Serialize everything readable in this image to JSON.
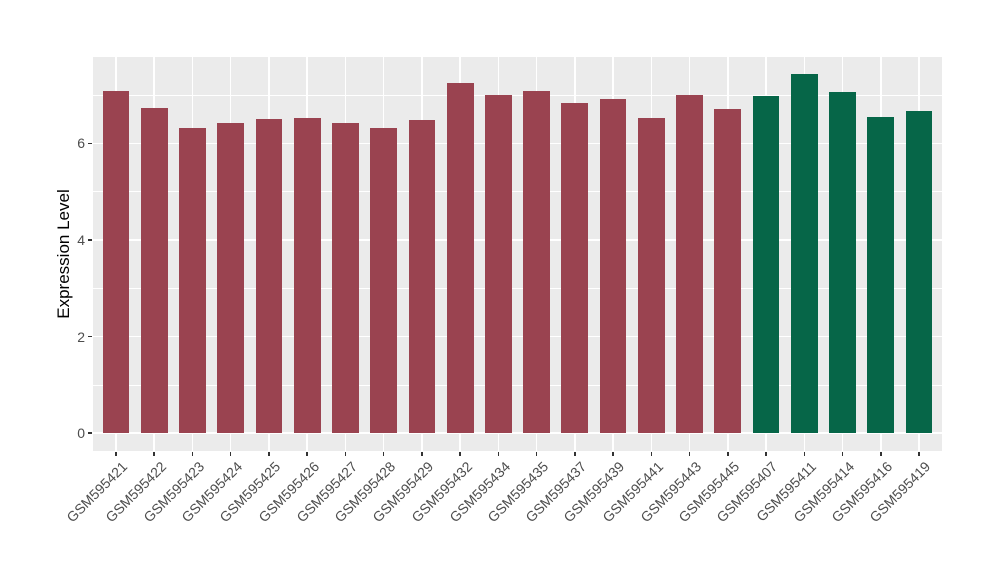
{
  "figure": {
    "background": "#FFFFFF"
  },
  "chart_data": {
    "type": "bar",
    "title": "",
    "xlabel": "",
    "ylabel": "Expression Level",
    "legend_position": "none",
    "grid": true,
    "panel_bg": "#EBEBEB",
    "gridline_color": "#FFFFFF",
    "axis_text_color": "#4D4D4D",
    "axis_title_color": "#000000",
    "tick_mark_color": "#333333",
    "bar_width_frac": 0.7,
    "yticks": [
      0,
      2,
      4,
      6
    ],
    "minor_yticks": [
      1,
      3,
      5,
      7
    ],
    "ylim": [
      0,
      7.43
    ],
    "y_display_range": [
      -0.37,
      7.79
    ],
    "categories": [
      "GSM595421",
      "GSM595422",
      "GSM595423",
      "GSM595424",
      "GSM595425",
      "GSM595426",
      "GSM595427",
      "GSM595428",
      "GSM595429",
      "GSM595432",
      "GSM595434",
      "GSM595435",
      "GSM595437",
      "GSM595439",
      "GSM595441",
      "GSM595443",
      "GSM595445",
      "GSM595407",
      "GSM595411",
      "GSM595414",
      "GSM595416",
      "GSM595419"
    ],
    "values": [
      7.08,
      6.74,
      6.32,
      6.42,
      6.5,
      6.53,
      6.43,
      6.31,
      6.48,
      7.26,
      7.0,
      7.09,
      6.84,
      6.92,
      6.52,
      7.0,
      6.72,
      6.98,
      7.43,
      7.06,
      6.55,
      6.67
    ],
    "bar_colors": [
      "#9A4350",
      "#9A4350",
      "#9A4350",
      "#9A4350",
      "#9A4350",
      "#9A4350",
      "#9A4350",
      "#9A4350",
      "#9A4350",
      "#9A4350",
      "#9A4350",
      "#9A4350",
      "#9A4350",
      "#9A4350",
      "#9A4350",
      "#9A4350",
      "#9A4350",
      "#066648",
      "#066648",
      "#066648",
      "#066648",
      "#066648"
    ],
    "group_colors": {
      "left_group": "#9A4350",
      "right_group": "#066648"
    }
  }
}
